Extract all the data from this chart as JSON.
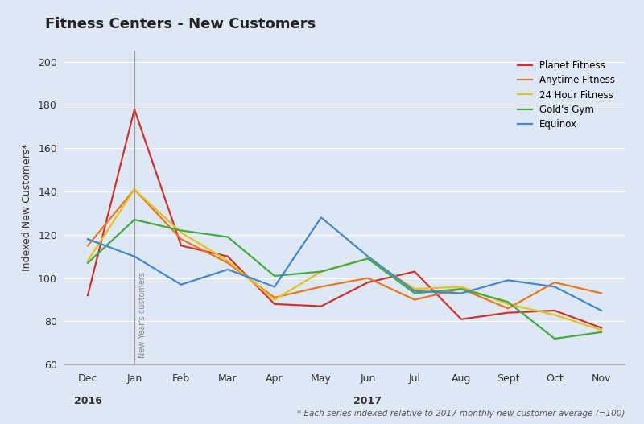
{
  "title": "Fitness Centers - New Customers",
  "ylabel": "Indexed New Customers*",
  "footnote": "* Each series indexed relative to 2017 monthly new customer average (=100)",
  "background_color": "#dde8f4",
  "plot_bg_color": "#dde8f4",
  "ylim": [
    60,
    205
  ],
  "yticks": [
    60,
    80,
    100,
    120,
    140,
    160,
    180,
    200
  ],
  "x_labels": [
    "Dec",
    "Jan",
    "Feb",
    "Mar",
    "Apr",
    "May",
    "Jun",
    "Jul",
    "Aug",
    "Sept",
    "Oct",
    "Nov"
  ],
  "year_label_2016_idx": 0,
  "year_label_2017_idx": 6,
  "vertical_line_x": 1,
  "vertical_line_label": "New Year's customers",
  "series": [
    {
      "name": "Planet Fitness",
      "color": "#cc3333",
      "values": [
        92,
        178,
        115,
        110,
        88,
        87,
        98,
        103,
        81,
        84,
        85,
        77
      ]
    },
    {
      "name": "Anytime Fitness",
      "color": "#e87722",
      "values": [
        115,
        141,
        118,
        107,
        91,
        96,
        100,
        90,
        95,
        86,
        98,
        93
      ]
    },
    {
      "name": "24 Hour Fitness",
      "color": "#e8c020",
      "values": [
        108,
        141,
        121,
        108,
        90,
        103,
        109,
        95,
        96,
        88,
        83,
        76
      ]
    },
    {
      "name": "Gold's Gym",
      "color": "#44aa44",
      "values": [
        107,
        127,
        122,
        119,
        101,
        103,
        109,
        93,
        95,
        89,
        72,
        75
      ]
    },
    {
      "name": "Equinox",
      "color": "#4488cc",
      "values": [
        118,
        110,
        97,
        104,
        96,
        128,
        110,
        94,
        93,
        99,
        96,
        85
      ]
    }
  ]
}
